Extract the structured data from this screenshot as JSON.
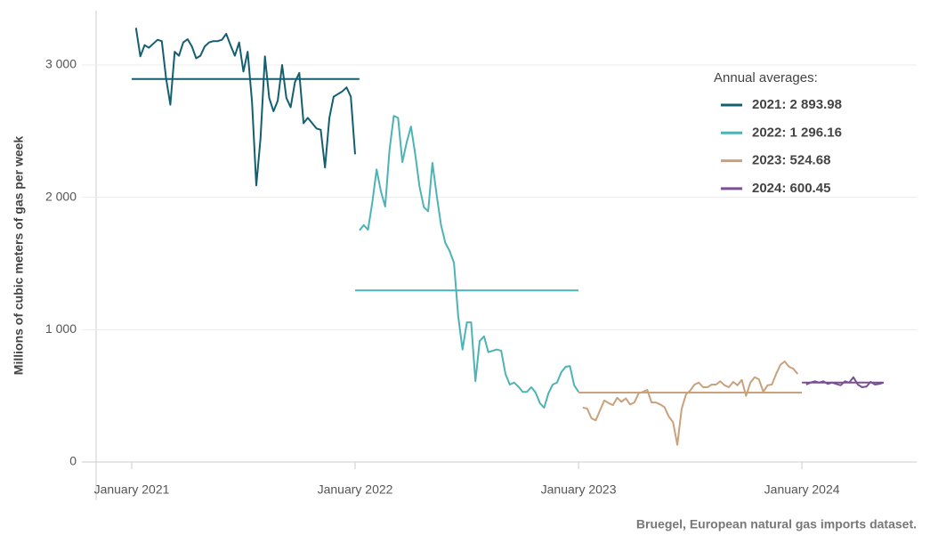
{
  "chart_data": {
    "type": "line",
    "y_axis_label": "Millions of cubic meters of gas per week",
    "legend_title": "Annual averages:",
    "source": "Bruegel, European natural gas imports dataset.",
    "xlim": [
      -11.6,
      182.7
    ],
    "xticks": [
      {
        "value": 0,
        "label": "January 2021"
      },
      {
        "value": 52,
        "label": "January 2022"
      },
      {
        "value": 104,
        "label": "January 2023"
      },
      {
        "value": 156,
        "label": "January 2024"
      }
    ],
    "ylim": [
      0,
      3410
    ],
    "yticks": [
      0,
      {
        "value": 1000,
        "label": "1 000"
      },
      {
        "value": 2000,
        "label": "2 000"
      },
      {
        "value": 3000,
        "label": "3 000"
      }
    ],
    "grid": true,
    "series": [
      {
        "name": "2021: 2 893.98",
        "color": "#135f70",
        "average": 2893.98,
        "average_x": [
          0,
          53
        ],
        "x": [
          1,
          2,
          3,
          4,
          5,
          6,
          7,
          8,
          9,
          10,
          11,
          12,
          13,
          14,
          15,
          16,
          17,
          18,
          19,
          20,
          21,
          22,
          23,
          24,
          25,
          26,
          27,
          28,
          29,
          30,
          31,
          32,
          33,
          34,
          35,
          36,
          37,
          38,
          39,
          40,
          41,
          42,
          43,
          44,
          45,
          46,
          47,
          48,
          49,
          50,
          51,
          52
        ],
        "values": [
          3280,
          3065,
          3150,
          3130,
          3160,
          3190,
          3180,
          2900,
          2700,
          3100,
          3070,
          3170,
          3195,
          3140,
          3050,
          3070,
          3140,
          3170,
          3180,
          3180,
          3190,
          3235,
          3150,
          3070,
          3170,
          2950,
          3100,
          2720,
          2090,
          2450,
          3065,
          2750,
          2650,
          2730,
          3000,
          2750,
          2680,
          2870,
          2940,
          2560,
          2600,
          2560,
          2520,
          2510,
          2225,
          2600,
          2760,
          2780,
          2800,
          2830,
          2760,
          2325
        ]
      },
      {
        "name": "2022: 1 296.16",
        "color": "#4db3b4",
        "average": 1296.16,
        "average_x": [
          52,
          104
        ],
        "x": [
          53,
          54,
          55,
          56,
          57,
          58,
          59,
          60,
          61,
          62,
          63,
          64,
          65,
          66,
          67,
          68,
          69,
          70,
          71,
          72,
          73,
          74,
          75,
          76,
          77,
          78,
          79,
          80,
          81,
          82,
          83,
          84,
          85,
          86,
          87,
          88,
          89,
          90,
          91,
          92,
          93,
          94,
          95,
          96,
          97,
          98,
          99,
          100,
          101,
          102,
          103,
          104
        ],
        "values": [
          1750,
          1790,
          1755,
          1960,
          2210,
          2045,
          1930,
          2360,
          2615,
          2600,
          2265,
          2415,
          2535,
          2325,
          2080,
          1925,
          1895,
          2260,
          2010,
          1790,
          1655,
          1595,
          1505,
          1100,
          850,
          1055,
          1055,
          610,
          915,
          950,
          830,
          840,
          850,
          840,
          665,
          585,
          600,
          570,
          530,
          530,
          565,
          525,
          445,
          410,
          520,
          585,
          600,
          680,
          720,
          725,
          580,
          530
        ]
      },
      {
        "name": "2023: 524.68",
        "color": "#c9a17b",
        "average": 524.68,
        "average_x": [
          104,
          156
        ],
        "x": [
          105,
          106,
          107,
          108,
          109,
          110,
          111,
          112,
          113,
          114,
          115,
          116,
          117,
          118,
          119,
          120,
          121,
          122,
          123,
          124,
          125,
          126,
          127,
          128,
          129,
          130,
          131,
          132,
          133,
          134,
          135,
          136,
          137,
          138,
          139,
          140,
          141,
          142,
          143,
          144,
          145,
          146,
          147,
          148,
          149,
          150,
          151,
          152,
          153,
          154,
          155
        ],
        "values": [
          410,
          405,
          330,
          315,
          390,
          465,
          445,
          430,
          485,
          455,
          480,
          435,
          450,
          520,
          530,
          545,
          450,
          450,
          435,
          415,
          345,
          300,
          130,
          400,
          510,
          540,
          585,
          600,
          565,
          565,
          585,
          585,
          610,
          580,
          565,
          605,
          580,
          620,
          500,
          600,
          640,
          625,
          530,
          580,
          585,
          665,
          735,
          760,
          720,
          705,
          665
        ]
      },
      {
        "name": "2024: 600.45",
        "color": "#7b4f94",
        "average": 600.45,
        "average_x": [
          156,
          175
        ],
        "x": [
          157,
          158,
          159,
          160,
          161,
          162,
          163,
          164,
          165,
          166,
          167,
          168,
          169,
          170,
          171,
          172,
          173,
          174,
          175
        ],
        "values": [
          585,
          600,
          610,
          600,
          610,
          590,
          600,
          590,
          580,
          610,
          600,
          640,
          585,
          565,
          570,
          605,
          585,
          590,
          600
        ]
      }
    ]
  }
}
